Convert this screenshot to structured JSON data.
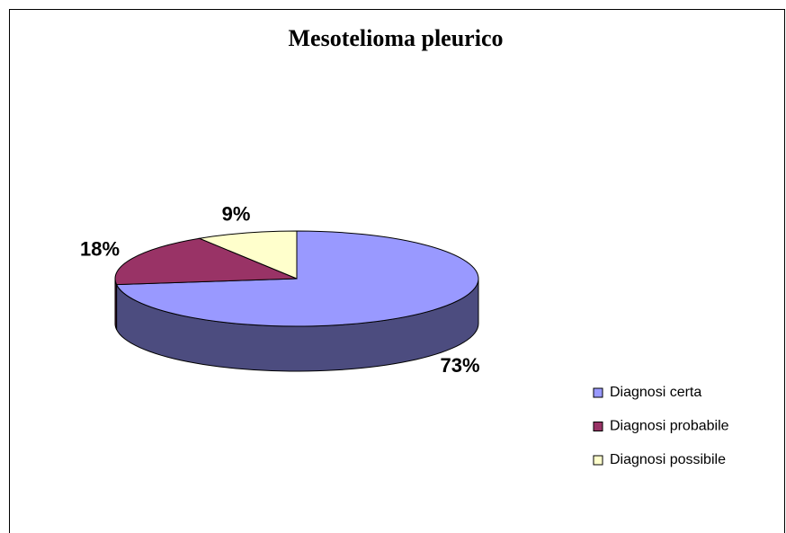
{
  "chart_data": {
    "type": "pie",
    "title": "Mesotelioma pleurico",
    "categories": [
      "Diagnosi certa",
      "Diagnosi probabile",
      "Diagnosi possibile"
    ],
    "values": [
      73,
      18,
      9
    ],
    "value_labels": [
      "73%",
      "18%",
      "9%"
    ],
    "colors": [
      "#9999ff",
      "#993366",
      "#ffffcc"
    ],
    "legend": "right"
  }
}
